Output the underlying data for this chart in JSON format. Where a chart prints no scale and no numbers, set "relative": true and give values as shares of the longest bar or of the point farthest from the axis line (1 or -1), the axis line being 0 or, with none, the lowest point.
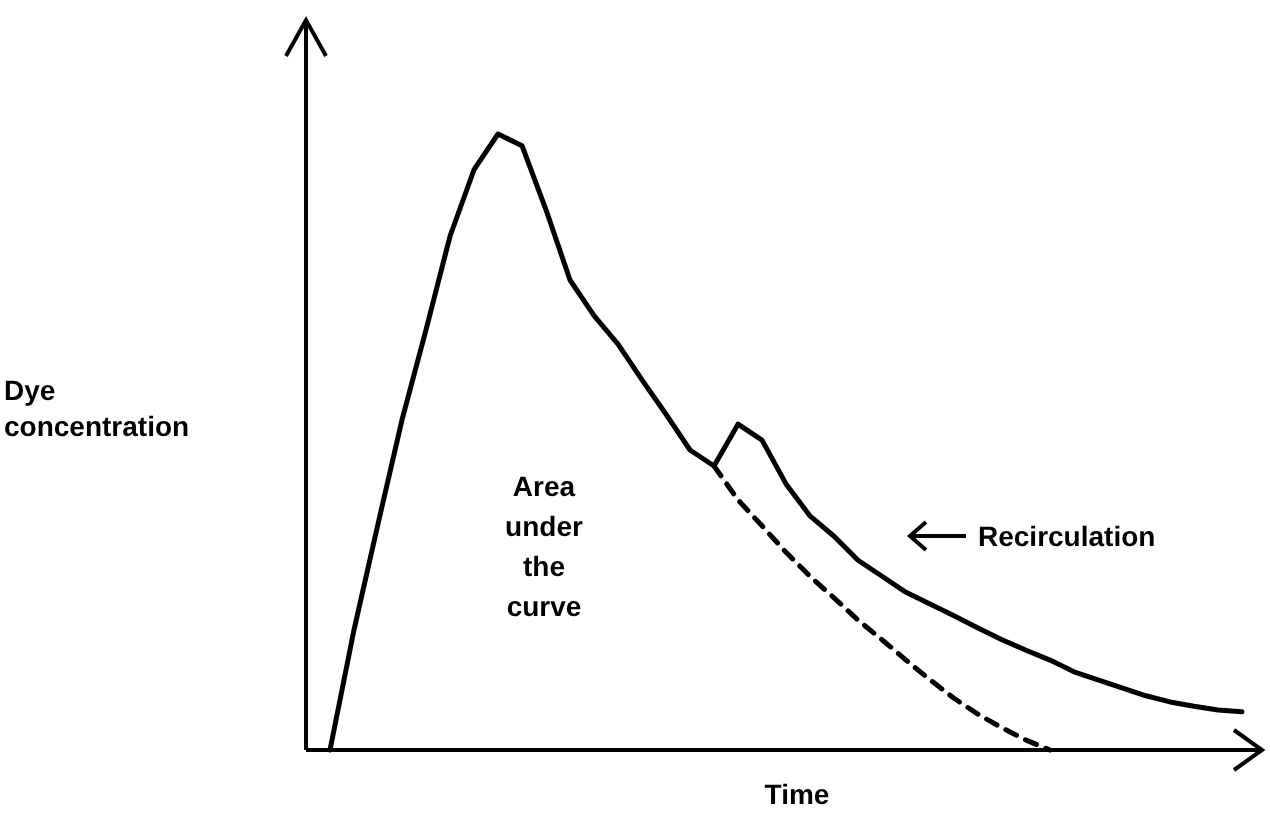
{
  "chart_data": {
    "type": "line",
    "relative": true,
    "xlabel": "Time",
    "ylabel": "Dye concentration",
    "annotations": [
      "Area under the curve",
      "Recirculation"
    ],
    "categories": [
      null,
      null,
      null,
      null,
      null,
      null,
      null,
      null,
      null,
      null,
      null,
      null,
      null,
      null,
      null,
      null,
      null,
      null,
      null,
      null,
      null,
      null,
      null,
      null,
      null,
      null,
      null,
      null,
      null,
      null,
      null,
      null,
      null,
      null,
      null,
      null,
      null,
      null,
      null
    ],
    "series": [
      {
        "color": "#000000",
        "line_style": "solid",
        "values": [
          0,
          0.195,
          0.367,
          0.536,
          0.682,
          0.834,
          0.942,
          1,
          0.981,
          0.877,
          0.763,
          0.705,
          0.659,
          0.601,
          0.545,
          0.487,
          0.461,
          0.529,
          0.503,
          0.432,
          0.38,
          0.347,
          0.308,
          0.282,
          0.256,
          0.237,
          0.218,
          0.198,
          0.179,
          0.162,
          0.146,
          0.127,
          0.114,
          0.101,
          0.088,
          0.078,
          0.071,
          0.065,
          0.062
        ]
      },
      {
        "color": "#000000",
        "line_style": "dashed",
        "values": [
          null,
          null,
          null,
          null,
          null,
          null,
          null,
          null,
          null,
          null,
          null,
          null,
          null,
          null,
          null,
          null,
          0.461,
          0.406,
          0.364,
          0.321,
          0.282,
          0.247,
          0.211,
          0.179,
          0.146,
          0.114,
          0.084,
          0.058,
          0.036,
          0.016,
          0,
          null,
          null,
          null,
          null,
          null,
          null,
          null,
          null
        ]
      }
    ]
  }
}
